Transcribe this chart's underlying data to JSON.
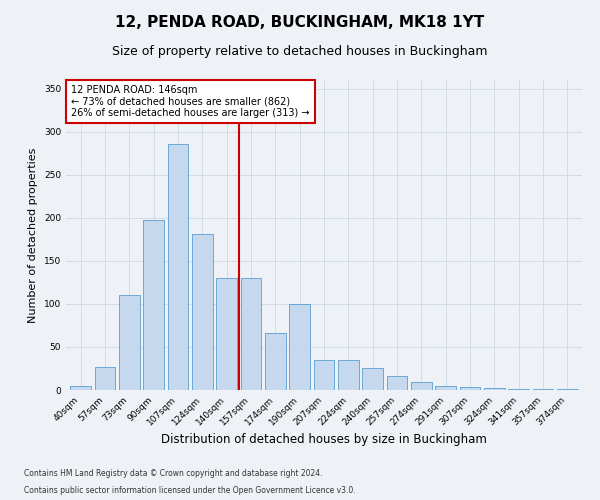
{
  "title": "12, PENDA ROAD, BUCKINGHAM, MK18 1YT",
  "subtitle": "Size of property relative to detached houses in Buckingham",
  "xlabel": "Distribution of detached houses by size in Buckingham",
  "ylabel": "Number of detached properties",
  "categories": [
    "40sqm",
    "57sqm",
    "73sqm",
    "90sqm",
    "107sqm",
    "124sqm",
    "140sqm",
    "157sqm",
    "174sqm",
    "190sqm",
    "207sqm",
    "224sqm",
    "240sqm",
    "257sqm",
    "274sqm",
    "291sqm",
    "307sqm",
    "324sqm",
    "341sqm",
    "357sqm",
    "374sqm"
  ],
  "values": [
    5,
    27,
    110,
    197,
    286,
    181,
    130,
    130,
    66,
    100,
    35,
    35,
    25,
    16,
    9,
    5,
    3,
    2,
    1,
    1,
    1
  ],
  "bar_color": "#c5d8ed",
  "bar_edge_color": "#5a9fd4",
  "grid_color": "#d0dce8",
  "background_color": "#eef2f7",
  "annotation_box_text": "12 PENDA ROAD: 146sqm\n← 73% of detached houses are smaller (862)\n26% of semi-detached houses are larger (313) →",
  "annotation_box_color": "#ffffff",
  "annotation_box_edge_color": "#cc0000",
  "vline_color": "#cc0000",
  "ylim": [
    0,
    360
  ],
  "yticks": [
    0,
    50,
    100,
    150,
    200,
    250,
    300,
    350
  ],
  "footnote1": "Contains HM Land Registry data © Crown copyright and database right 2024.",
  "footnote2": "Contains public sector information licensed under the Open Government Licence v3.0.",
  "title_fontsize": 11,
  "subtitle_fontsize": 9,
  "tick_fontsize": 6.5,
  "ylabel_fontsize": 8,
  "xlabel_fontsize": 8.5,
  "footnote_fontsize": 5.5
}
